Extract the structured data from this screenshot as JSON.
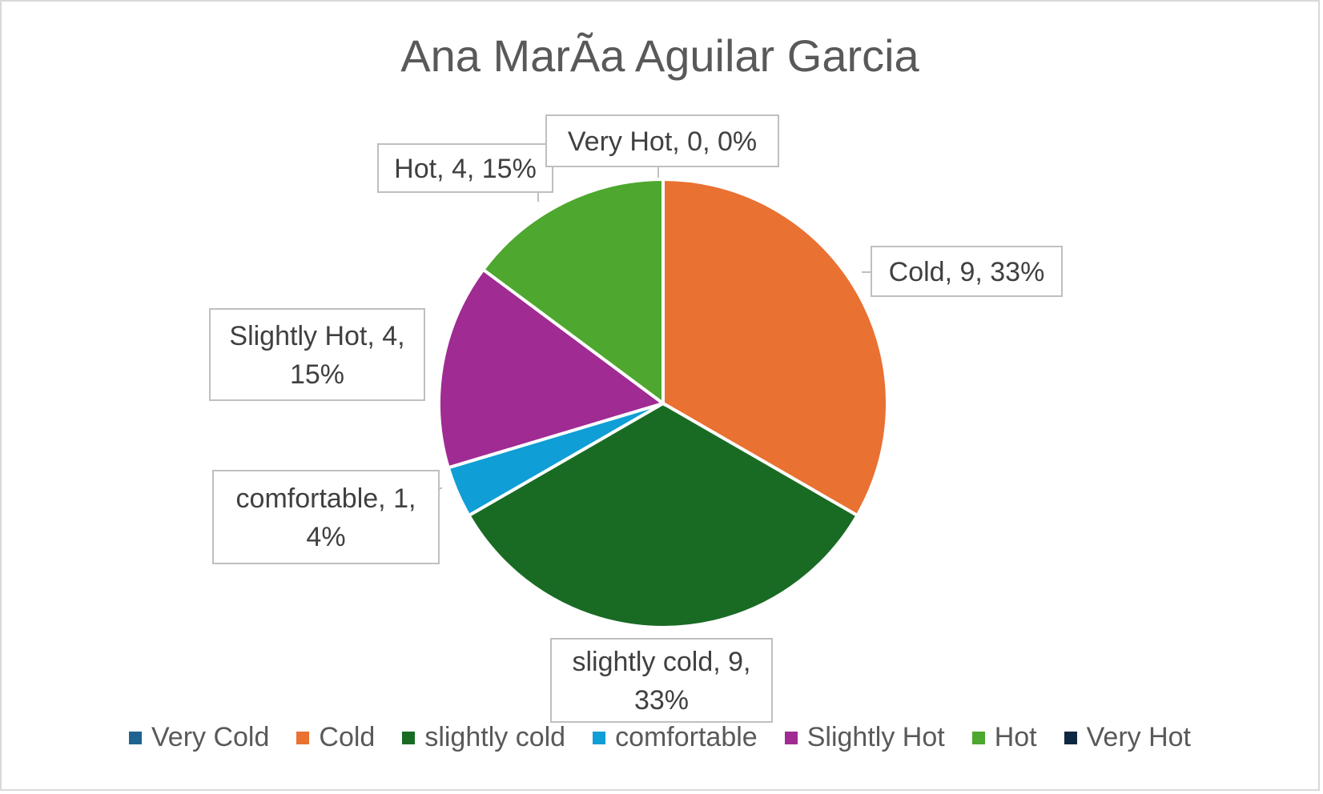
{
  "chart_data": {
    "type": "pie",
    "title": "Ana MarÃa Aguilar Garcia",
    "categories": [
      "Very Cold",
      "Cold",
      "slightly cold",
      "comfortable",
      "Slightly Hot",
      "Hot",
      "Very Hot"
    ],
    "values": [
      0,
      9,
      9,
      1,
      4,
      4,
      0
    ],
    "colors": [
      "#1f6391",
      "#e97132",
      "#196b24",
      "#0f9ed5",
      "#a02b93",
      "#4ea72e",
      "#0e2841"
    ],
    "data_labels": [
      null,
      [
        "Cold, 9, 33%"
      ],
      [
        "slightly cold, 9,",
        "33%"
      ],
      [
        "comfortable, 1,",
        "4%"
      ],
      [
        "Slightly Hot, 4,",
        "15%"
      ],
      [
        "Hot, 4, 15%"
      ],
      [
        "Very Hot, 0, 0%"
      ]
    ],
    "legend_position": "bottom"
  }
}
